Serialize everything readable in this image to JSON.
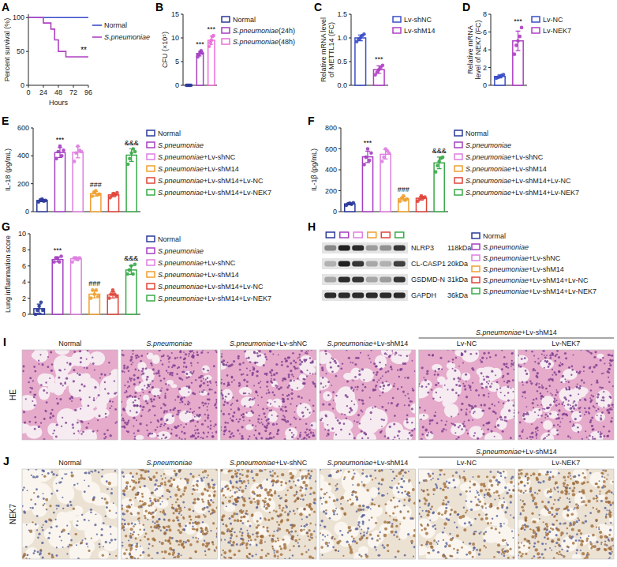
{
  "chart_data": [
    {
      "panel_label": "A",
      "type": "line",
      "x_label": "Hours",
      "y_label": "Percent survival (%)",
      "xlim": [
        0,
        96
      ],
      "xticks": [
        0,
        24,
        48,
        72,
        96
      ],
      "ylim": [
        0,
        105
      ],
      "yticks": [
        0,
        50,
        100
      ],
      "legend": "right",
      "series": [
        {
          "name": "Normal",
          "color": "#3a4ec8",
          "x": [
            0,
            96
          ],
          "values": [
            100,
            100
          ]
        },
        {
          "name": "S.pneumoniae",
          "color": "#b03fc4",
          "x": [
            0,
            24,
            24,
            36,
            36,
            42,
            42,
            48,
            48,
            60,
            60,
            96
          ],
          "values": [
            100,
            100,
            92,
            92,
            83,
            83,
            67,
            67,
            50,
            50,
            42,
            42
          ]
        }
      ],
      "annotations": [
        {
          "text": "**",
          "series": 1
        }
      ]
    },
    {
      "panel_label": "B",
      "type": "bar",
      "y_label": "CFU (×10⁵)",
      "categories": [
        "Normal",
        "S.pneumoniae(24h)",
        "S.pneumoniae(48h)"
      ],
      "colors": [
        "#2b3a9a",
        "#a43fc0",
        "#ec6fd8"
      ],
      "values": [
        0,
        6.7,
        9.5
      ],
      "errors": [
        0,
        0.5,
        0.9
      ],
      "points": [
        [
          0,
          0,
          0,
          0,
          0
        ],
        [
          6.0,
          6.5,
          7.0,
          7.3,
          6.8
        ],
        [
          8.2,
          9.0,
          9.5,
          10.3,
          10.5
        ]
      ],
      "ylim": [
        0,
        15
      ],
      "yticks": [
        0,
        5,
        10,
        15
      ],
      "tick_labels": "y",
      "legend": "right",
      "annotations": [
        {
          "text": "***",
          "category": 1
        },
        {
          "text": "***",
          "category": 2
        }
      ]
    },
    {
      "panel_label": "C",
      "type": "bar",
      "y_label": "Relative mRNA level of METTL14 (FC)",
      "categories": [
        "Lv-shNC",
        "Lv-shM14"
      ],
      "colors": [
        "#3a4ec8",
        "#b03fc4"
      ],
      "values": [
        1.0,
        0.33
      ],
      "errors": [
        0.06,
        0.08
      ],
      "points": [
        [
          0.92,
          0.97,
          1.0,
          1.05,
          1.08
        ],
        [
          0.22,
          0.28,
          0.33,
          0.38,
          0.42
        ]
      ],
      "ylim": [
        0,
        1.5
      ],
      "yticks": [
        {
          "value": 0,
          "label": "0.0"
        },
        {
          "value": 0.5,
          "label": "0.5"
        },
        {
          "value": 1,
          "label": "1.0"
        },
        {
          "value": 1.5,
          "label": "1.5"
        }
      ],
      "tick_labels": "y",
      "legend": "right",
      "annotations": [
        {
          "text": "***",
          "category": 1
        }
      ]
    },
    {
      "panel_label": "D",
      "type": "bar",
      "y_label": "Relative mRNA level of NEK7 (FC)",
      "categories": [
        "Lv-NC",
        "Lv-NEK7"
      ],
      "colors": [
        "#3a4ec8",
        "#b03fc4"
      ],
      "values": [
        1.0,
        5.0
      ],
      "errors": [
        0.16,
        1.1
      ],
      "points": [
        [
          0.8,
          0.9,
          1.0,
          1.1,
          1.2
        ],
        [
          3.5,
          4.5,
          5.0,
          5.5,
          6.5
        ]
      ],
      "ylim": [
        0,
        8
      ],
      "yticks": [
        0,
        2,
        4,
        6,
        8
      ],
      "tick_labels": "y",
      "legend": "right",
      "annotations": [
        {
          "text": "***",
          "category": 1
        }
      ]
    },
    {
      "panel_label": "E",
      "type": "bar",
      "y_label": "IL-18 (pg/mL)",
      "categories": [
        "Normal",
        "S.pneumoniae",
        "S.pneumoniae+Lv-shNC",
        "S.pneumoniae+Lv-shM14",
        "S.pneumoniae+Lv-shM14+Lv-NC",
        "S.pneumoniae+Lv-shM14+Lv-NEK7"
      ],
      "colors": [
        "#2b3a9a",
        "#a43fc0",
        "#de7fe0",
        "#f0a030",
        "#e0453a",
        "#3aaa4a"
      ],
      "values": [
        80,
        424,
        426,
        129,
        120,
        405
      ],
      "errors": [
        8,
        35,
        40,
        16,
        14,
        45
      ],
      "points": [
        [
          70,
          85,
          90,
          75,
          80
        ],
        [
          380,
          430,
          470,
          400,
          440
        ],
        [
          360,
          420,
          470,
          440,
          430
        ],
        [
          110,
          140,
          150,
          120,
          125
        ],
        [
          100,
          115,
          130,
          120,
          135
        ],
        [
          340,
          380,
          420,
          450,
          430
        ]
      ],
      "ylim": [
        0,
        600
      ],
      "yticks": [
        0,
        200,
        400,
        600
      ],
      "tick_labels": "y",
      "legend": "right",
      "annotations": [
        {
          "text": "***",
          "category": 1
        },
        {
          "text": "###",
          "category": 3
        },
        {
          "text": "&&&",
          "category": 5
        }
      ]
    },
    {
      "panel_label": "F",
      "type": "bar",
      "y_label": "IL-1β (pg/mL)",
      "categories": [
        "Normal",
        "S.pneumoniae",
        "S.pneumoniae+Lv-shNC",
        "S.pneumoniae+Lv-shM14",
        "S.pneumoniae+Lv-shM14+Lv-NC",
        "S.pneumoniae+Lv-shM14+Lv-NEK7"
      ],
      "colors": [
        "#2b3a9a",
        "#a43fc0",
        "#de7fe0",
        "#f0a030",
        "#e0453a",
        "#3aaa4a"
      ],
      "values": [
        74,
        524,
        548,
        122,
        128,
        466
      ],
      "errors": [
        10,
        55,
        45,
        20,
        18,
        55
      ],
      "points": [
        [
          60,
          75,
          80,
          70,
          85
        ],
        [
          450,
          520,
          600,
          490,
          560
        ],
        [
          480,
          520,
          600,
          580,
          560
        ],
        [
          100,
          130,
          150,
          110,
          120
        ],
        [
          100,
          120,
          150,
          130,
          140
        ],
        [
          380,
          440,
          480,
          510,
          520
        ]
      ],
      "ylim": [
        0,
        800
      ],
      "yticks": [
        0,
        200,
        400,
        600,
        800
      ],
      "tick_labels": "y",
      "legend": "right",
      "annotations": [
        {
          "text": "***",
          "category": 1
        },
        {
          "text": "###",
          "category": 3
        },
        {
          "text": "&&&",
          "category": 5
        }
      ]
    },
    {
      "panel_label": "G",
      "type": "bar",
      "y_label": "Lung inflammation score",
      "categories": [
        "Normal",
        "S.pneumoniae",
        "S.pneumoniae+Lv-shNC",
        "S.pneumoniae+Lv-shM14",
        "S.pneumoniae+Lv-shM14+Lv-NC",
        "S.pneumoniae+Lv-shM14+Lv-NEK7"
      ],
      "colors": [
        "#2b3a9a",
        "#a43fc0",
        "#de7fe0",
        "#f0a030",
        "#e0453a",
        "#3aaa4a"
      ],
      "values": [
        0.7,
        6.8,
        6.9,
        2.5,
        2.4,
        5.5
      ],
      "errors": [
        0.57,
        0.3,
        0.21,
        0.45,
        0.38,
        0.54
      ],
      "points": [
        [
          0,
          0.5,
          1,
          1.5,
          0.5
        ],
        [
          6.5,
          7,
          7,
          6.5,
          7.2
        ],
        [
          6.5,
          7,
          7,
          6.8,
          7
        ],
        [
          2,
          3,
          2.5,
          3,
          2.2
        ],
        [
          2,
          2.5,
          3,
          2.5,
          2.2
        ],
        [
          5,
          5.5,
          6,
          5,
          6.2
        ]
      ],
      "ylim": [
        0,
        10
      ],
      "yticks": [
        0,
        2,
        4,
        6,
        8,
        10
      ],
      "tick_labels": "y",
      "legend": "right",
      "annotations": [
        {
          "text": "***",
          "category": 1
        },
        {
          "text": "###",
          "category": 3
        },
        {
          "text": "&&&",
          "category": 5
        }
      ]
    }
  ],
  "blot": {
    "panel_label": "H",
    "groups": [
      "Normal",
      "S.pneumoniae",
      "S.pneumoniae+Lv-shNC",
      "S.pneumoniae+Lv-shM14",
      "S.pneumoniae+Lv-shM14+Lv-NC",
      "S.pneumoniae+Lv-shM14+Lv-NEK7"
    ],
    "colors": [
      "#2b3a9a",
      "#a43fc0",
      "#de7fe0",
      "#f0a030",
      "#e0453a",
      "#3aaa4a"
    ],
    "rows": [
      {
        "protein": "NLRP3",
        "size": "118kDa",
        "intensities": [
          0.45,
          0.95,
          0.9,
          0.35,
          0.4,
          0.85
        ]
      },
      {
        "protein": "CL-CASP1",
        "size": "20kDa",
        "intensities": [
          0.25,
          0.95,
          0.85,
          0.3,
          0.25,
          0.8
        ]
      },
      {
        "protein": "GSDMD-N",
        "size": "31kDa",
        "intensities": [
          0.3,
          0.9,
          0.85,
          0.3,
          0.35,
          0.85
        ]
      },
      {
        "protein": "GAPDH",
        "size": "36kDa",
        "intensities": [
          0.9,
          0.9,
          0.9,
          0.9,
          0.9,
          0.9
        ]
      }
    ]
  },
  "histology": {
    "rows": [
      {
        "panel_label": "I",
        "label": "HE",
        "group_header": "S.pneumoniae+Lv-shM14",
        "column_titles": [
          "Normal",
          "S.pneumoniae",
          "S.pneumoniae+Lv-shNC",
          "S.pneumoniae+Lv-shM14",
          "Lv-NC",
          "Lv-NEK7"
        ],
        "density": [
          0.1,
          0.9,
          0.85,
          0.35,
          0.4,
          0.75
        ]
      },
      {
        "panel_label": "J",
        "label": "NEK7",
        "group_header": "S.pneumoniae+Lv-shM14",
        "column_titles": [
          "Normal",
          "S.pneumoniae",
          "S.pneumoniae+Lv-shNC",
          "S.pneumoniae+Lv-shM14",
          "Lv-NC",
          "Lv-NEK7"
        ],
        "density": [
          0.05,
          0.8,
          0.8,
          0.3,
          0.35,
          0.7
        ]
      }
    ]
  }
}
